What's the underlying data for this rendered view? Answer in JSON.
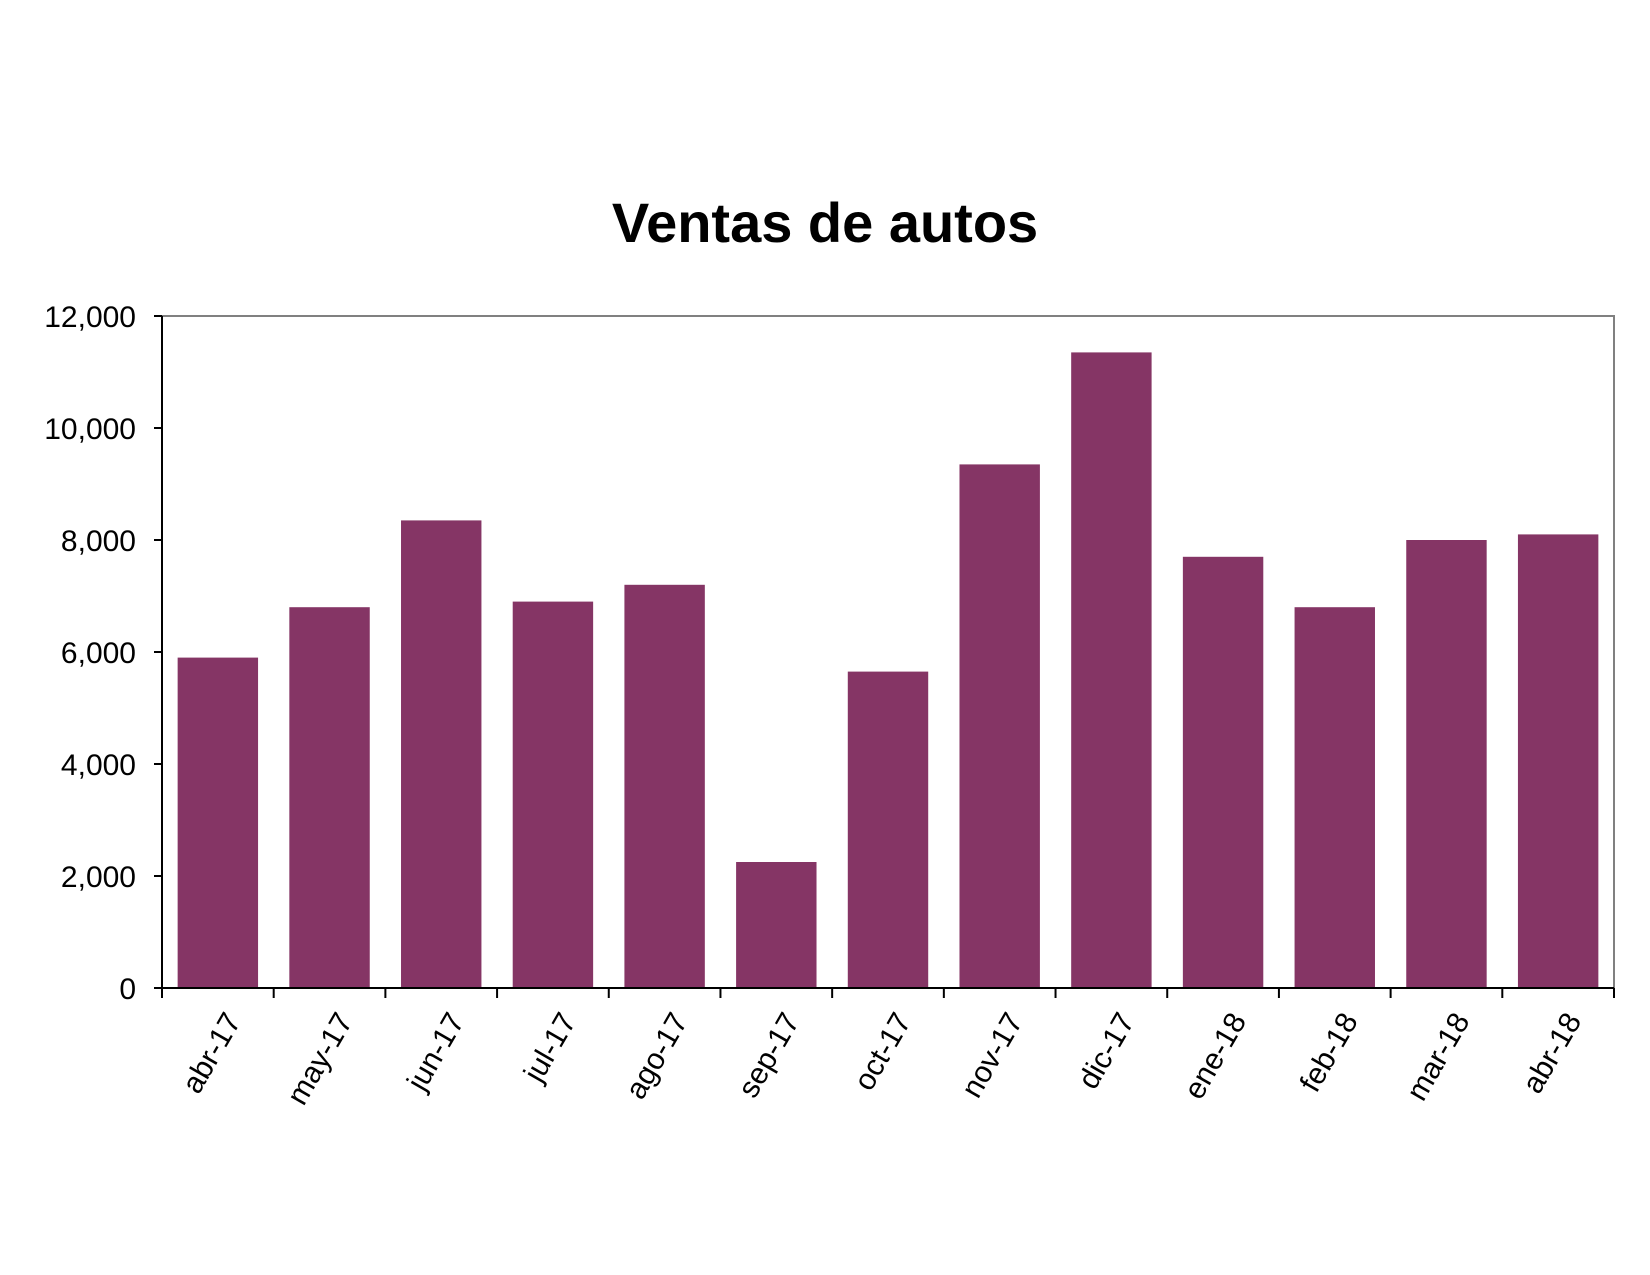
{
  "chart_data": {
    "type": "bar",
    "title": "Ventas de autos",
    "xlabel": "",
    "ylabel": "",
    "categories": [
      "abr-17",
      "may-17",
      "jun-17",
      "jul-17",
      "ago-17",
      "sep-17",
      "oct-17",
      "nov-17",
      "dic-17",
      "ene-18",
      "feb-18",
      "mar-18",
      "abr-18"
    ],
    "values": [
      5900,
      6800,
      8350,
      6900,
      7200,
      2250,
      5650,
      9350,
      11350,
      7700,
      6800,
      8000,
      8100
    ],
    "ylim": [
      0,
      12000
    ],
    "yticks": [
      "0",
      "2,000",
      "4,000",
      "6,000",
      "8,000",
      "10,000",
      "12,000"
    ],
    "ytick_values": [
      0,
      2000,
      4000,
      6000,
      8000,
      10000,
      12000
    ],
    "grid": false,
    "legend": "none",
    "bar_color": "#853565"
  }
}
